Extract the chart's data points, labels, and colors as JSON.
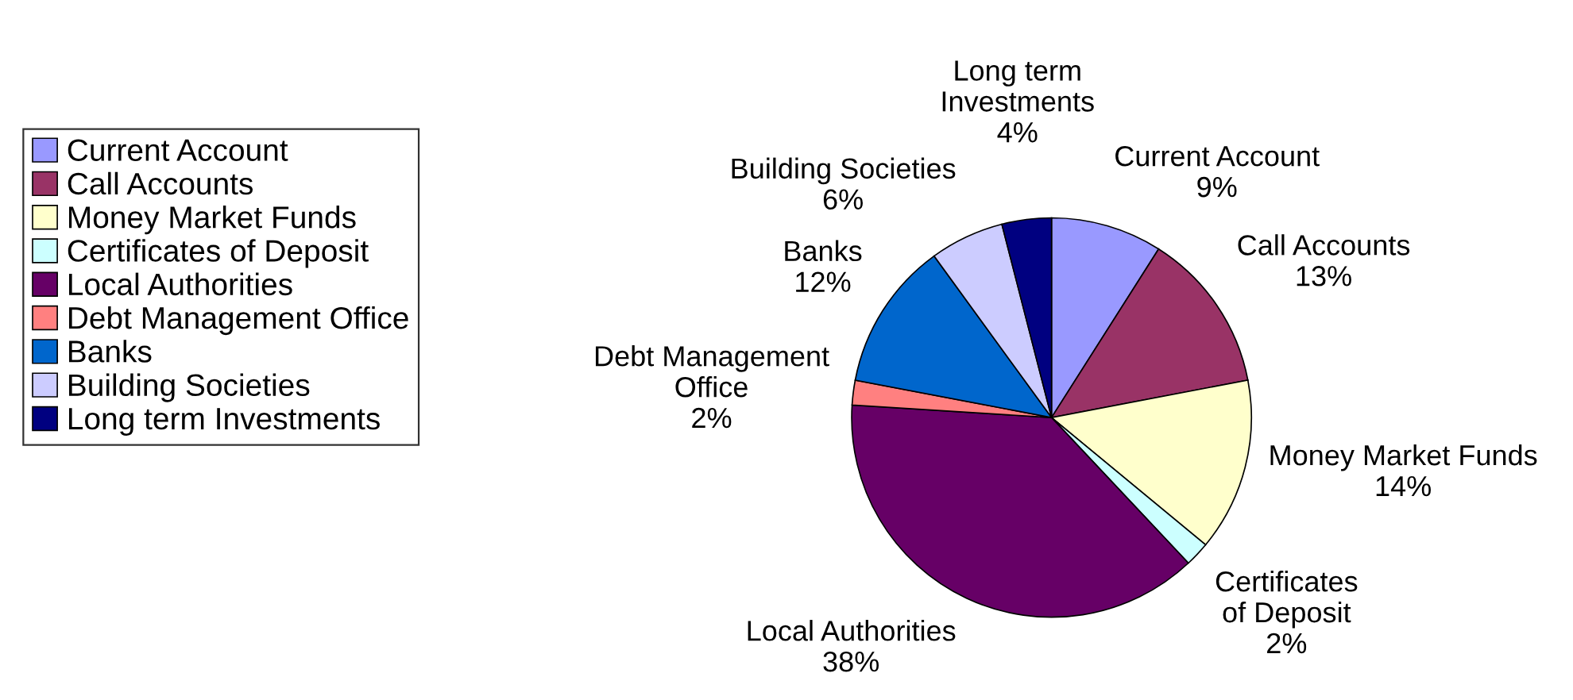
{
  "chart_data": {
    "type": "pie",
    "categories": [
      "Current Account",
      "Call Accounts",
      "Money Market Funds",
      "Certificates of Deposit",
      "Local Authorities",
      "Debt Management Office",
      "Banks",
      "Building Societies",
      "Long term Investments"
    ],
    "values": [
      9,
      13,
      14,
      2,
      38,
      2,
      12,
      6,
      4
    ],
    "value_labels": [
      "9%",
      "13%",
      "14%",
      "2%",
      "38%",
      "2%",
      "12%",
      "6%",
      "4%"
    ],
    "colors": [
      "#9999ff",
      "#993366",
      "#ffffcc",
      "#ccffff",
      "#660066",
      "#ff8080",
      "#0066cc",
      "#ccccff",
      "#000080"
    ],
    "legend": "left"
  }
}
